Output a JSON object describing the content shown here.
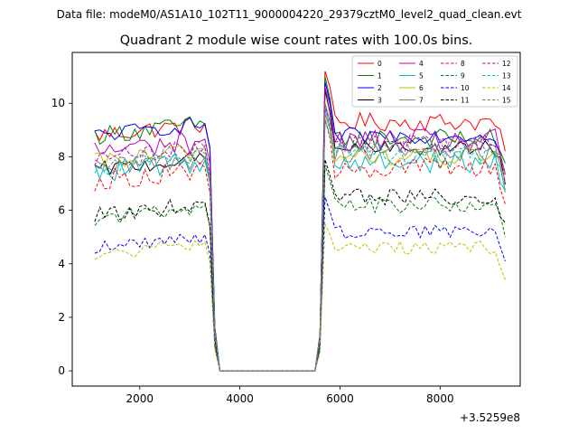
{
  "suptitle": "Data file: modeM0/AS1A10_102T11_9000004220_29379cztM0_level2_quad_clean.evt",
  "chart_data": {
    "type": "line",
    "title": "Quadrant 2 module wise count rates with 100.0s bins.",
    "xlabel": "",
    "ylabel": "",
    "x_offset_label": "+3.5259e8",
    "xlim": [
      650,
      9600
    ],
    "ylim": [
      -0.57,
      11.9
    ],
    "x_ticks": [
      2000,
      4000,
      6000,
      8000
    ],
    "y_ticks": [
      0,
      2,
      4,
      6,
      8,
      10
    ],
    "x_start": 1100,
    "x_step": 100,
    "num_bins": 83,
    "gap_start_bin": 25,
    "gap_end_bin": 44,
    "legend_location": "top-right",
    "series": [
      {
        "name": "0",
        "color": "#ff0000",
        "dash": "solid",
        "pre": 9.0,
        "post": 9.3,
        "peak": 11.2,
        "noise": 0.35
      },
      {
        "name": "1",
        "color": "#008000",
        "dash": "solid",
        "pre": 9.0,
        "post": 8.7,
        "peak": 11.0,
        "noise": 0.35
      },
      {
        "name": "2",
        "color": "#0000ff",
        "dash": "solid",
        "pre": 9.0,
        "post": 8.8,
        "peak": 10.8,
        "noise": 0.3
      },
      {
        "name": "3",
        "color": "#000000",
        "dash": "solid",
        "pre": 7.7,
        "post": 8.3,
        "peak": 10.5,
        "noise": 0.3
      },
      {
        "name": "4",
        "color": "#bf00bf",
        "dash": "solid",
        "pre": 8.4,
        "post": 8.6,
        "peak": 10.6,
        "noise": 0.45
      },
      {
        "name": "5",
        "color": "#00bfbf",
        "dash": "solid",
        "pre": 7.6,
        "post": 7.8,
        "peak": 9.8,
        "noise": 0.4
      },
      {
        "name": "6",
        "color": "#bfbf00",
        "dash": "solid",
        "pre": 8.0,
        "post": 8.0,
        "peak": 9.6,
        "noise": 0.35
      },
      {
        "name": "7",
        "color": "#808080",
        "dash": "solid",
        "pre": 7.7,
        "post": 8.2,
        "peak": 10.0,
        "noise": 0.4
      },
      {
        "name": "8",
        "color": "#ff0000",
        "dash": "dashed",
        "pre": 7.3,
        "post": 7.6,
        "peak": 9.4,
        "noise": 0.4
      },
      {
        "name": "9",
        "color": "#008000",
        "dash": "dashed",
        "pre": 5.9,
        "post": 6.2,
        "peak": 7.7,
        "noise": 0.3
      },
      {
        "name": "10",
        "color": "#0000ff",
        "dash": "dashed",
        "pre": 4.8,
        "post": 5.2,
        "peak": 6.5,
        "noise": 0.25
      },
      {
        "name": "11",
        "color": "#000000",
        "dash": "dashed",
        "pre": 6.0,
        "post": 6.5,
        "peak": 7.9,
        "noise": 0.3
      },
      {
        "name": "12",
        "color": "#bf00bf",
        "dash": "dashed",
        "pre": 8.1,
        "post": 8.5,
        "peak": 9.9,
        "noise": 0.35
      },
      {
        "name": "13",
        "color": "#00bfbf",
        "dash": "dashed",
        "pre": 7.8,
        "post": 8.1,
        "peak": 9.4,
        "noise": 0.35
      },
      {
        "name": "14",
        "color": "#bfbf00",
        "dash": "dashed",
        "pre": 4.5,
        "post": 4.6,
        "peak": 5.5,
        "noise": 0.25
      },
      {
        "name": "15",
        "color": "#808080",
        "dash": "dashed",
        "pre": 8.0,
        "post": 8.4,
        "peak": 9.6,
        "noise": 0.35
      }
    ]
  }
}
